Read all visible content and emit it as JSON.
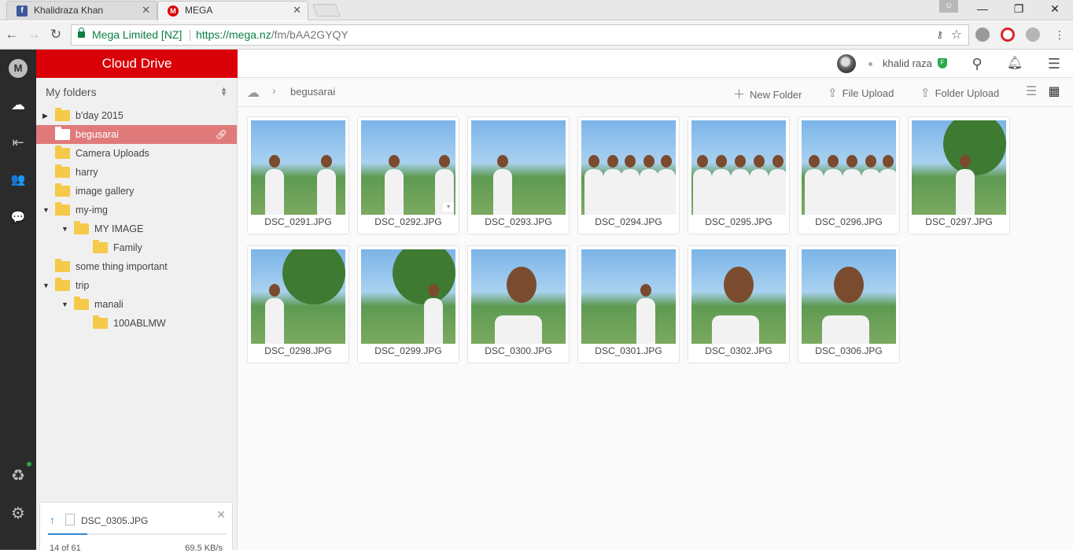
{
  "browser": {
    "tabs": [
      {
        "title": "Khalidraza Khan",
        "close": "✕"
      },
      {
        "title": "MEGA",
        "close": "✕"
      }
    ],
    "window_controls": {
      "minimize": "—",
      "restore": "❐",
      "close": "✕"
    },
    "address": {
      "site_identity": "Mega Limited [NZ]",
      "url_host": "https://mega.nz",
      "url_path": "/fm/bAA2GYQY",
      "key_icon": "⚷",
      "star_icon": "☆"
    },
    "nav": {
      "back": "←",
      "forward": "→",
      "reload": "↻"
    }
  },
  "iconbar": {
    "logo": "M",
    "items": [
      {
        "name": "cloud-drive-icon",
        "glyph": "☁"
      },
      {
        "name": "inbox-icon",
        "glyph": "⇤"
      },
      {
        "name": "contacts-icon",
        "glyph": "👥"
      },
      {
        "name": "chat-icon",
        "glyph": "💬"
      }
    ],
    "bottom": [
      {
        "name": "rubbish-bin-icon",
        "glyph": "♻"
      },
      {
        "name": "settings-icon",
        "glyph": "⚙"
      }
    ]
  },
  "sidebar": {
    "header": "Cloud Drive",
    "section_label": "My folders",
    "tree": [
      {
        "label": "b'day 2015",
        "expander": "▶",
        "level": 0,
        "selected": false
      },
      {
        "label": "begusarai",
        "expander": "",
        "level": 0,
        "selected": true
      },
      {
        "label": "Camera Uploads",
        "expander": "",
        "level": 0,
        "selected": false
      },
      {
        "label": "harry",
        "expander": "",
        "level": 0,
        "selected": false
      },
      {
        "label": "image gallery",
        "expander": "",
        "level": 0,
        "selected": false
      },
      {
        "label": "my-img",
        "expander": "▼",
        "level": 0,
        "selected": false
      },
      {
        "label": "MY IMAGE",
        "expander": "▼",
        "level": 1,
        "selected": false
      },
      {
        "label": "Family",
        "expander": "",
        "level": 2,
        "selected": false
      },
      {
        "label": "some thing important",
        "expander": "",
        "level": 0,
        "selected": false
      },
      {
        "label": "trip",
        "expander": "▼",
        "level": 0,
        "selected": false
      },
      {
        "label": "manali",
        "expander": "▼",
        "level": 1,
        "selected": false
      },
      {
        "label": "100ABLMW",
        "expander": "",
        "level": 2,
        "selected": false
      }
    ]
  },
  "transfer": {
    "file_name": "DSC_0305.JPG",
    "count": "14 of 61",
    "speed": "69.5 KB/s",
    "progress_percent": 22
  },
  "header": {
    "user_name": "khalid raza",
    "plan_badge": "F"
  },
  "actions": {
    "breadcrumb": "begusarai",
    "new_folder": "New Folder",
    "file_upload": "File Upload",
    "folder_upload": "Folder Upload"
  },
  "files": [
    {
      "name": "DSC_0291.JPG"
    },
    {
      "name": "DSC_0292.JPG"
    },
    {
      "name": "DSC_0293.JPG"
    },
    {
      "name": "DSC_0294.JPG"
    },
    {
      "name": "DSC_0295.JPG"
    },
    {
      "name": "DSC_0296.JPG"
    },
    {
      "name": "DSC_0297.JPG"
    },
    {
      "name": "DSC_0298.JPG"
    },
    {
      "name": "DSC_0299.JPG"
    },
    {
      "name": "DSC_0300.JPG"
    },
    {
      "name": "DSC_0301.JPG"
    },
    {
      "name": "DSC_0302.JPG"
    },
    {
      "name": "DSC_0306.JPG"
    }
  ],
  "colors": {
    "brand_red": "#d90007",
    "selected_folder": "#e07a7a",
    "folder_yellow": "#f5c94a"
  }
}
